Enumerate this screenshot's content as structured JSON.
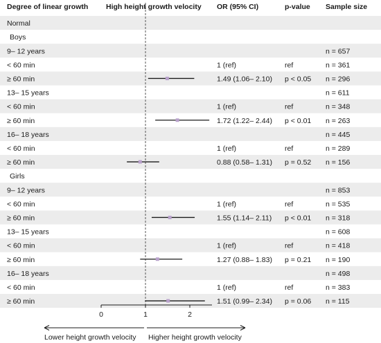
{
  "headers": {
    "category": "Degree of linear growth",
    "plot": "High height growth velocity",
    "or": "OR (95% CI)",
    "p": "p-value",
    "n": "Sample size"
  },
  "chart_data": {
    "type": "forest",
    "xlim": [
      0,
      2.5
    ],
    "xticks": [
      0,
      1,
      2
    ],
    "reference_line": 1,
    "arrow_left_label": "Lower height growth velocity",
    "arrow_right_label": "Higher height growth velocity",
    "rows": [
      {
        "label": "Normal",
        "kind": "section",
        "indent": 0,
        "shade": true
      },
      {
        "label": "Boys",
        "kind": "section",
        "indent": 1,
        "shade": false
      },
      {
        "label": "9–  12 years",
        "kind": "group",
        "indent": 0,
        "shade": true,
        "n": "n = 657"
      },
      {
        "label": "< 60 min",
        "kind": "row",
        "indent": 0,
        "shade": false,
        "or": "1 (ref)",
        "p": "ref",
        "n": "n = 361"
      },
      {
        "label": "≥ 60 min",
        "kind": "row",
        "indent": 0,
        "shade": true,
        "or": "1.49 (1.06–  2.10)",
        "p": "p < 0.05",
        "n": "n = 296",
        "est": 1.49,
        "lo": 1.06,
        "hi": 2.1
      },
      {
        "label": "13–  15 years",
        "kind": "group",
        "indent": 0,
        "shade": false,
        "n": "n = 611"
      },
      {
        "label": "< 60 min",
        "kind": "row",
        "indent": 0,
        "shade": true,
        "or": "1 (ref)",
        "p": "ref",
        "n": "n = 348"
      },
      {
        "label": "≥ 60 min",
        "kind": "row",
        "indent": 0,
        "shade": false,
        "or": "1.72 (1.22–  2.44)",
        "p": "p < 0.01",
        "n": "n = 263",
        "est": 1.72,
        "lo": 1.22,
        "hi": 2.44
      },
      {
        "label": "16–  18 years",
        "kind": "group",
        "indent": 0,
        "shade": true,
        "n": "n = 445"
      },
      {
        "label": "< 60 min",
        "kind": "row",
        "indent": 0,
        "shade": false,
        "or": "1 (ref)",
        "p": "ref",
        "n": "n = 289"
      },
      {
        "label": "≥ 60 min",
        "kind": "row",
        "indent": 0,
        "shade": true,
        "or": "0.88 (0.58–  1.31)",
        "p": "p = 0.52",
        "n": "n = 156",
        "est": 0.88,
        "lo": 0.58,
        "hi": 1.31
      },
      {
        "label": "Girls",
        "kind": "section",
        "indent": 1,
        "shade": false
      },
      {
        "label": "9–  12 years",
        "kind": "group",
        "indent": 0,
        "shade": true,
        "n": "n = 853"
      },
      {
        "label": "< 60 min",
        "kind": "row",
        "indent": 0,
        "shade": false,
        "or": "1 (ref)",
        "p": "ref",
        "n": "n = 535"
      },
      {
        "label": "≥ 60 min",
        "kind": "row",
        "indent": 0,
        "shade": true,
        "or": "1.55 (1.14–  2.11)",
        "p": "p < 0.01",
        "n": "n = 318",
        "est": 1.55,
        "lo": 1.14,
        "hi": 2.11
      },
      {
        "label": "13–  15 years",
        "kind": "group",
        "indent": 0,
        "shade": false,
        "n": "n = 608"
      },
      {
        "label": "< 60 min",
        "kind": "row",
        "indent": 0,
        "shade": true,
        "or": "1 (ref)",
        "p": "ref",
        "n": "n = 418"
      },
      {
        "label": "≥ 60 min",
        "kind": "row",
        "indent": 0,
        "shade": false,
        "or": "1.27 (0.88–  1.83)",
        "p": "p = 0.21",
        "n": "n = 190",
        "est": 1.27,
        "lo": 0.88,
        "hi": 1.83
      },
      {
        "label": "16–  18 years",
        "kind": "group",
        "indent": 0,
        "shade": true,
        "n": "n = 498"
      },
      {
        "label": "< 60 min",
        "kind": "row",
        "indent": 0,
        "shade": false,
        "or": "1 (ref)",
        "p": "ref",
        "n": "n = 383"
      },
      {
        "label": "≥ 60 min",
        "kind": "row",
        "indent": 0,
        "shade": true,
        "or": "1.51 (0.99–  2.34)",
        "p": "p = 0.06",
        "n": "n = 115",
        "est": 1.51,
        "lo": 0.99,
        "hi": 2.34
      }
    ]
  },
  "colors": {
    "band": "#ececec",
    "point": "#b9a2cc",
    "ci_line": "#1a1a1a",
    "ref_line": "#555555"
  }
}
